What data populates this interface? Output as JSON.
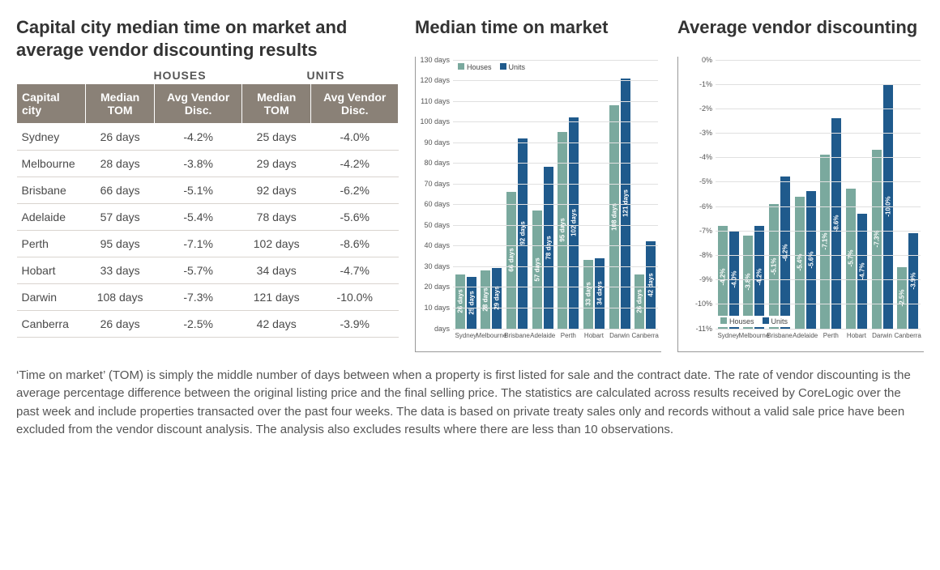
{
  "colors": {
    "houses": "#7aa99e",
    "units": "#1f5a8c",
    "header_bg": "#8a8177",
    "grid": "#e0e0e0",
    "axis": "#999999",
    "text": "#333333",
    "bar_label": "#ffffff",
    "background": "#ffffff"
  },
  "fonts": {
    "family": "Arial, Helvetica, sans-serif",
    "title_size_pt": 16,
    "table_size_pt": 11,
    "axis_label_size_pt": 7,
    "bar_value_size_pt": 6,
    "footnote_size_pt": 11
  },
  "table": {
    "title": "Capital city median time on market and average vendor discounting results",
    "group_labels": {
      "city": "",
      "houses": "HOUSES",
      "units": "UNITS"
    },
    "columns": {
      "city": "Capital city",
      "h_tom": "Median TOM",
      "h_disc": "Avg Vendor Disc.",
      "u_tom": "Median TOM",
      "u_disc": "Avg Vendor Disc."
    },
    "rows": [
      {
        "city": "Sydney",
        "h_tom": "26 days",
        "h_disc": "-4.2%",
        "u_tom": "25 days",
        "u_disc": "-4.0%"
      },
      {
        "city": "Melbourne",
        "h_tom": "28 days",
        "h_disc": "-3.8%",
        "u_tom": "29 days",
        "u_disc": "-4.2%"
      },
      {
        "city": "Brisbane",
        "h_tom": "66 days",
        "h_disc": "-5.1%",
        "u_tom": "92 days",
        "u_disc": "-6.2%"
      },
      {
        "city": "Adelaide",
        "h_tom": "57 days",
        "h_disc": "-5.4%",
        "u_tom": "78 days",
        "u_disc": "-5.6%"
      },
      {
        "city": "Perth",
        "h_tom": "95 days",
        "h_disc": "-7.1%",
        "u_tom": "102 days",
        "u_disc": "-8.6%"
      },
      {
        "city": "Hobart",
        "h_tom": "33 days",
        "h_disc": "-5.7%",
        "u_tom": "34 days",
        "u_disc": "-4.7%"
      },
      {
        "city": "Darwin",
        "h_tom": "108 days",
        "h_disc": "-7.3%",
        "u_tom": "121 days",
        "u_disc": "-10.0%"
      },
      {
        "city": "Canberra",
        "h_tom": "26 days",
        "h_disc": "-2.5%",
        "u_tom": "42 days",
        "u_disc": "-3.9%"
      }
    ]
  },
  "chart_tom": {
    "type": "bar",
    "title": "Median time on market",
    "legend": {
      "houses": "Houses",
      "units": "Units",
      "position": "top-left"
    },
    "y": {
      "min": 0,
      "max": 130,
      "step": 10,
      "unit": "days"
    },
    "categories": [
      "Sydney",
      "Melbourne",
      "Brisbane",
      "Adelaide",
      "Perth",
      "Hobart",
      "Darwin",
      "Canberra"
    ],
    "series": {
      "houses": [
        26,
        28,
        66,
        57,
        95,
        33,
        108,
        26
      ],
      "units": [
        25,
        29,
        92,
        78,
        102,
        34,
        121,
        42
      ]
    },
    "bar_labels": {
      "houses": [
        "26 days",
        "28 days",
        "66 days",
        "57 days",
        "95 days",
        "33 days",
        "108 days",
        "26 days"
      ],
      "units": [
        "25 days",
        "29 days",
        "92 days",
        "78 days",
        "102 days",
        "34 days",
        "121 days",
        "42 days"
      ]
    }
  },
  "chart_disc": {
    "type": "bar",
    "title": "Average vendor discounting",
    "legend": {
      "houses": "Houses",
      "units": "Units",
      "position": "bottom-left"
    },
    "y": {
      "min": -11,
      "max": 0,
      "step": 1,
      "unit": "%"
    },
    "categories": [
      "Sydney",
      "Melbourne",
      "Brisbane",
      "Adelaide",
      "Perth",
      "Hobart",
      "Darwin",
      "Canberra"
    ],
    "series": {
      "houses": [
        -4.2,
        -3.8,
        -5.1,
        -5.4,
        -7.1,
        -5.7,
        -7.3,
        -2.5
      ],
      "units": [
        -4.0,
        -4.2,
        -6.2,
        -5.6,
        -8.6,
        -4.7,
        -10.0,
        -3.9
      ]
    },
    "bar_labels": {
      "houses": [
        "-4.2%",
        "-3.8%",
        "-5.1%",
        "-5.4%",
        "-7.1%",
        "-5.7%",
        "-7.3%",
        "-2.5%"
      ],
      "units": [
        "-4.0%",
        "-4.2%",
        "-6.2%",
        "-5.6%",
        "-8.6%",
        "-4.7%",
        "-10.0%",
        "-3.9%"
      ]
    }
  },
  "footnote": "‘Time on market’ (TOM) is simply the middle number of days between when a property is first listed for sale and the contract date.  The rate of vendor discounting is the average percentage difference between the original listing price and the final selling price.  The statistics are calculated across results received by CoreLogic over the past week and include properties transacted over the past four weeks. The data is based on private treaty sales only and records without a valid sale price have been excluded from the vendor discount analysis. The analysis also excludes results where there are less than 10 observations."
}
